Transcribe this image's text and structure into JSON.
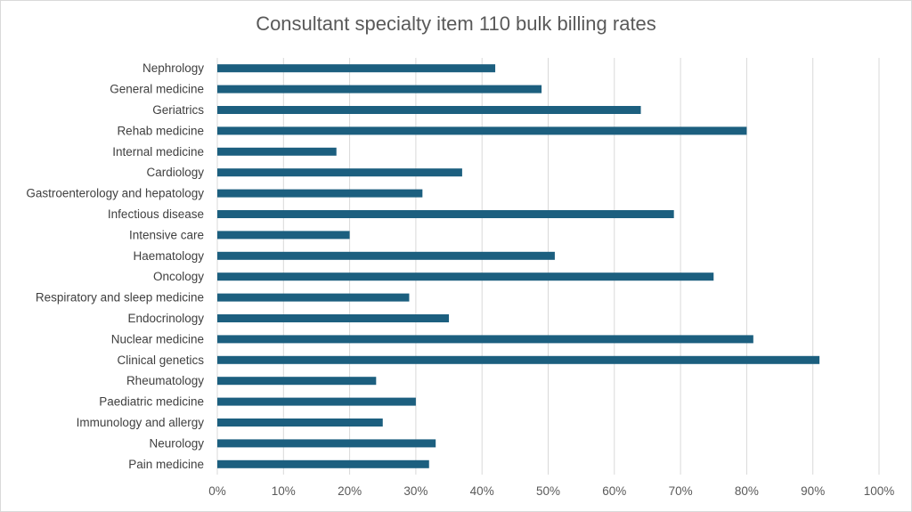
{
  "chart_data": {
    "type": "bar",
    "orientation": "horizontal",
    "title": "Consultant specialty item 110 bulk billing rates",
    "xlabel": "",
    "ylabel": "",
    "categories": [
      "Nephrology",
      "General medicine",
      "Geriatrics",
      "Rehab medicine",
      "Internal medicine",
      "Cardiology",
      "Gastroenterology and hepatology",
      "Infectious disease",
      "Intensive care",
      "Haematology",
      "Oncology",
      "Respiratory and sleep medicine",
      "Endocrinology",
      "Nuclear medicine",
      "Clinical genetics",
      "Rheumatology",
      "Paediatric medicine",
      "Immunology and allergy",
      "Neurology",
      "Pain medicine"
    ],
    "values": [
      42,
      49,
      64,
      80,
      18,
      37,
      31,
      69,
      20,
      51,
      75,
      29,
      35,
      81,
      91,
      24,
      30,
      25,
      33,
      32
    ],
    "xlim": [
      0,
      100
    ],
    "xticks": [
      "0%",
      "10%",
      "20%",
      "30%",
      "40%",
      "50%",
      "60%",
      "70%",
      "80%",
      "90%",
      "100%"
    ],
    "grid": "vertical",
    "legend": "none",
    "bar_color": "#1c5f7f",
    "grid_color": "#d9d9d9"
  }
}
